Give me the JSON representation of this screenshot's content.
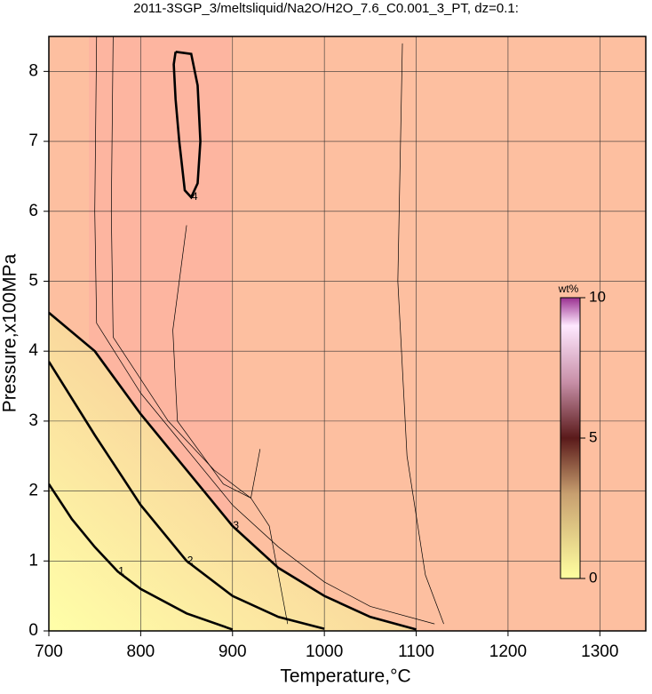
{
  "chart_data": {
    "type": "contour",
    "title": "2011-3SGP_3/meltsliquid/Na2O/H2O_7.6_C0.001_3_PT, dz=0.1:",
    "x_label": "Temperature,°C",
    "y_label": "Pressure,x100MPa",
    "xlim": [
      700,
      1350
    ],
    "ylim": [
      0,
      8.5
    ],
    "xticks": [
      700,
      800,
      900,
      1000,
      1100,
      1200,
      1300
    ],
    "yticks": [
      0,
      1,
      2,
      3,
      4,
      5,
      6,
      7,
      8
    ],
    "grid": true,
    "colorbar": {
      "label": "wt%",
      "lim": [
        0,
        10
      ],
      "ticks": [
        0,
        5,
        10
      ]
    },
    "series": [
      {
        "level": 1,
        "major": true,
        "x": [
          700,
          725,
          750,
          775,
          800,
          850,
          900
        ],
        "y": [
          2.1,
          1.6,
          1.2,
          0.85,
          0.6,
          0.25,
          0.02
        ]
      },
      {
        "level": 2,
        "major": true,
        "x": [
          700,
          750,
          800,
          850,
          900,
          950,
          1000
        ],
        "y": [
          3.85,
          2.8,
          1.8,
          1.0,
          0.5,
          0.2,
          0.03
        ]
      },
      {
        "level": 3,
        "major": true,
        "x": [
          700,
          750,
          800,
          850,
          900,
          950,
          1000,
          1050,
          1100
        ],
        "y": [
          4.55,
          4.0,
          3.1,
          2.3,
          1.5,
          0.9,
          0.5,
          0.2,
          0.02
        ]
      },
      {
        "level": 4,
        "major": true,
        "x": [
          838,
          855,
          862,
          865,
          862,
          855,
          848,
          842,
          838,
          836,
          838
        ],
        "y": [
          8.28,
          8.25,
          7.8,
          7.0,
          6.4,
          6.2,
          6.3,
          7.0,
          7.6,
          8.1,
          8.28
        ]
      },
      {
        "level": 3.8,
        "major": false,
        "x": [
          752,
          750,
          752,
          800,
          850,
          900,
          950,
          1000,
          1050,
          1120
        ],
        "y": [
          8.5,
          6.0,
          4.4,
          3.4,
          2.6,
          1.8,
          1.2,
          0.7,
          0.35,
          0.1
        ]
      },
      {
        "level": 3.9,
        "major": false,
        "x": [
          770,
          768,
          770,
          830,
          880,
          920,
          940,
          960
        ],
        "y": [
          8.5,
          6.0,
          4.2,
          3.0,
          2.3,
          1.9,
          1.5,
          0.1
        ]
      },
      {
        "level": 3.95,
        "major": false,
        "x": [
          850,
          835,
          840,
          890,
          920,
          930
        ],
        "y": [
          5.8,
          4.3,
          3.0,
          2.1,
          1.9,
          2.6
        ]
      },
      {
        "level": 3.85,
        "major": false,
        "x": [
          1085,
          1080,
          1090,
          1110,
          1130
        ],
        "y": [
          8.4,
          5.0,
          2.5,
          0.8,
          0.1
        ]
      }
    ]
  }
}
